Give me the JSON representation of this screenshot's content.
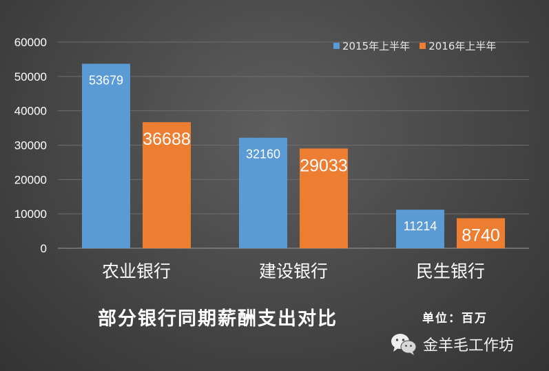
{
  "chart_data": {
    "type": "bar",
    "title": "部分银行同期薪酬支出对比",
    "unit_label": "单位：百万",
    "categories": [
      "农业银行",
      "建设银行",
      "民生银行"
    ],
    "series": [
      {
        "name": "2015年上半年",
        "values": [
          53679,
          32160,
          11214
        ],
        "color": "#5b9bd5"
      },
      {
        "name": "2016年上半年",
        "values": [
          36688,
          29033,
          8740
        ],
        "color": "#ed7d31"
      }
    ],
    "ylim": [
      0,
      60000
    ],
    "yticks": [
      0,
      10000,
      20000,
      30000,
      40000,
      50000,
      60000
    ],
    "grid": true,
    "legend_position": "top-right",
    "data_labels": true
  },
  "watermark": {
    "text": "金羊毛工作坊",
    "icon": "wechat-icon"
  }
}
